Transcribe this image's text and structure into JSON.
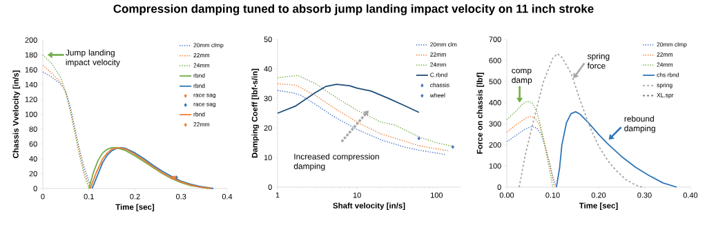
{
  "chart_data": [
    {
      "type": "line",
      "title": "Compression damping tuned to absorb jump landing impact velocity on 11 inch stroke",
      "xlabel": "Time [sec]",
      "ylabel": "Chassis Vvelocity [in/s]",
      "xlim": [
        0,
        0.4
      ],
      "ylim": [
        0,
        200
      ],
      "xticks": [
        0,
        0.1,
        0.2,
        0.3,
        0.4
      ],
      "yticks": [
        0,
        20,
        40,
        60,
        80,
        100,
        120,
        140,
        160,
        180,
        200
      ],
      "legend": "top right",
      "annotations": [
        {
          "text": "Jump landing impact velocity",
          "x": 0.01,
          "y": 180
        }
      ],
      "series": [
        {
          "name": "20mm clmp",
          "line_style": "dotted",
          "color": "#4472c4",
          "x": [
            0,
            0.02,
            0.04,
            0.05,
            0.06,
            0.07,
            0.08,
            0.09,
            0.1,
            0.105
          ],
          "values": [
            157,
            150,
            140,
            130,
            110,
            80,
            52,
            28,
            10,
            0
          ]
        },
        {
          "name": "22mm",
          "line_style": "dotted",
          "color": "#ed7d31",
          "x": [
            0,
            0.02,
            0.04,
            0.05,
            0.06,
            0.07,
            0.08,
            0.09,
            0.1,
            0.103
          ],
          "values": [
            166,
            155,
            142,
            128,
            105,
            77,
            48,
            22,
            5,
            0
          ]
        },
        {
          "name": "24mm",
          "line_style": "dotted",
          "color": "#70ad47",
          "x": [
            0,
            0.02,
            0.04,
            0.05,
            0.06,
            0.07,
            0.08,
            0.09,
            0.1
          ],
          "values": [
            180,
            168,
            148,
            130,
            103,
            73,
            43,
            18,
            0
          ]
        },
        {
          "name": "rbnd",
          "line_style": "solid",
          "color": "#70ad47",
          "x": [
            0.1,
            0.11,
            0.12,
            0.13,
            0.14,
            0.15,
            0.16,
            0.18,
            0.2,
            0.22,
            0.24,
            0.26,
            0.28,
            0.3,
            0.32,
            0.34,
            0.36
          ],
          "values": [
            0,
            22,
            38,
            48,
            53,
            55,
            55,
            51,
            44,
            36,
            28,
            20,
            13,
            8,
            4,
            2,
            0
          ]
        },
        {
          "name": "rbnd",
          "line_style": "solid",
          "color": "#2e75b6",
          "x": [
            0.107,
            0.12,
            0.13,
            0.14,
            0.15,
            0.16,
            0.17,
            0.18,
            0.2,
            0.22,
            0.24,
            0.26,
            0.28,
            0.3,
            0.32,
            0.34,
            0.37
          ],
          "values": [
            0,
            20,
            35,
            45,
            51,
            54,
            55,
            54,
            48,
            40,
            31,
            23,
            16,
            10,
            6,
            3,
            0
          ]
        },
        {
          "name": "race sag",
          "type": "scatter",
          "marker": "diamond",
          "color": "#ed7d31",
          "x": [
            0.283
          ],
          "values": [
            15
          ]
        },
        {
          "name": "race sag",
          "type": "scatter",
          "marker": "diamond",
          "color": "#2e75b6",
          "x": [
            0.29
          ],
          "values": [
            15
          ]
        },
        {
          "name": "rbnd",
          "line_style": "solid",
          "color": "#ed7d31",
          "x": [
            0.103,
            0.115,
            0.13,
            0.14,
            0.15,
            0.165,
            0.18,
            0.2,
            0.22,
            0.24,
            0.26,
            0.28,
            0.3,
            0.32,
            0.34,
            0.365
          ],
          "values": [
            0,
            20,
            40,
            48,
            53,
            55,
            53,
            46,
            38,
            29,
            21,
            14,
            9,
            5,
            2,
            0
          ]
        },
        {
          "name": "22mm",
          "type": "scatter",
          "marker": "diamond",
          "color": "#ed7d31",
          "x": [
            0.287
          ],
          "values": [
            15
          ]
        }
      ]
    },
    {
      "type": "line",
      "xlabel": "Shaft velocity [in/s]",
      "ylabel": "Damping Coeff [lbf-s/in]",
      "log": "x",
      "xlim": [
        1,
        200
      ],
      "ylim": [
        0,
        50
      ],
      "xticks": [
        1,
        10,
        100
      ],
      "yticks": [
        0,
        10,
        20,
        30,
        40,
        50
      ],
      "legend": "top right",
      "annotations": [
        "Increased compression damping"
      ],
      "series": [
        {
          "name": "20mm clm",
          "line_style": "dotted",
          "color": "#4472c4",
          "x": [
            1,
            1.5,
            2,
            3,
            5,
            10,
            20,
            40,
            60,
            130
          ],
          "values": [
            32.7,
            32,
            31,
            28,
            24,
            19.5,
            16,
            13.5,
            12.5,
            11
          ]
        },
        {
          "name": "22mm",
          "line_style": "dotted",
          "color": "#ed7d31",
          "x": [
            1,
            1.7,
            3,
            5,
            10,
            20,
            40,
            60,
            140
          ],
          "values": [
            35,
            34.5,
            31,
            27,
            22,
            18,
            15.5,
            14,
            12.3
          ]
        },
        {
          "name": "24mm",
          "line_style": "dotted",
          "color": "#70ad47",
          "x": [
            1,
            1.8,
            3,
            5,
            10,
            20,
            30,
            60,
            100,
            160
          ],
          "values": [
            37,
            37.8,
            35,
            31,
            26,
            22,
            21,
            17,
            15,
            13.8
          ]
        },
        {
          "name": "C.rbnd",
          "line_style": "solid",
          "color": "#1f4e79",
          "x": [
            1,
            1.7,
            3,
            4,
            5.5,
            8,
            10,
            15,
            25,
            40,
            60
          ],
          "values": [
            25,
            27.5,
            32,
            34,
            34.8,
            34.3,
            33.5,
            32.5,
            30,
            27.5,
            25.3
          ]
        },
        {
          "name": "chassis",
          "type": "scatter",
          "marker": "diamond",
          "color": "#4472c4",
          "x": [
            60
          ],
          "values": [
            16.5
          ]
        },
        {
          "name": "wheel",
          "type": "scatter",
          "marker": "diamond",
          "color": "#4472c4",
          "x": [
            160
          ],
          "values": [
            13.6
          ]
        }
      ]
    },
    {
      "type": "line",
      "xlabel": "Time [sec]",
      "ylabel": "Force on chassis [lbf]",
      "xlim": [
        0,
        0.4
      ],
      "ylim": [
        0,
        700
      ],
      "xticks": [
        {
          "value": 0,
          "label": "0.00"
        },
        {
          "value": 0.1,
          "label": "0.10"
        },
        {
          "value": 0.2,
          "label": "0.20"
        },
        {
          "value": 0.3,
          "label": "0.30"
        },
        {
          "value": 0.4,
          "label": "0.40"
        }
      ],
      "yticks": [
        0,
        100,
        200,
        300,
        400,
        500,
        600,
        700
      ],
      "legend": "top right",
      "annotations": [
        {
          "text": "comp damp",
          "x": 0.028,
          "y": 400
        },
        {
          "text": "spring force",
          "x": 0.145,
          "y": 515
        },
        {
          "text": "rebound damping",
          "x": 0.222,
          "y": 225
        }
      ],
      "series": [
        {
          "name": "20mm clmp",
          "line_style": "dotted",
          "color": "#4472c4",
          "x": [
            0,
            0.02,
            0.04,
            0.055,
            0.065,
            0.075,
            0.085,
            0.095,
            0.1,
            0.108
          ],
          "values": [
            215,
            245,
            275,
            288,
            280,
            250,
            180,
            100,
            50,
            0
          ]
        },
        {
          "name": "22mm",
          "line_style": "dotted",
          "color": "#ed7d31",
          "x": [
            0,
            0.02,
            0.04,
            0.05,
            0.06,
            0.07,
            0.08,
            0.09,
            0.1,
            0.104
          ],
          "values": [
            260,
            295,
            325,
            335,
            330,
            300,
            230,
            140,
            40,
            0
          ]
        },
        {
          "name": "24mm",
          "line_style": "dotted",
          "color": "#70ad47",
          "x": [
            0,
            0.02,
            0.035,
            0.045,
            0.055,
            0.065,
            0.075,
            0.085,
            0.095,
            0.1
          ],
          "values": [
            320,
            360,
            395,
            407,
            400,
            360,
            280,
            170,
            60,
            0
          ]
        },
        {
          "name": "chs rbnd",
          "line_style": "solid",
          "color": "#2e75b6",
          "x": [
            0.108,
            0.115,
            0.12,
            0.13,
            0.14,
            0.15,
            0.16,
            0.18,
            0.2,
            0.22,
            0.25,
            0.28,
            0.31,
            0.34,
            0.37
          ],
          "values": [
            0,
            90,
            200,
            305,
            348,
            357,
            345,
            300,
            250,
            205,
            145,
            95,
            55,
            20,
            0
          ]
        },
        {
          "name": "spring",
          "line_style": "dashed",
          "color": "#a6a6a6",
          "x": [
            0.027,
            0.04,
            0.06,
            0.08,
            0.1,
            0.11,
            0.12,
            0.14,
            0.16,
            0.18,
            0.2,
            0.22,
            0.24,
            0.26,
            0.28,
            0.295
          ],
          "values": [
            0,
            150,
            330,
            500,
            610,
            632,
            615,
            540,
            410,
            290,
            195,
            125,
            75,
            35,
            10,
            0
          ]
        },
        {
          "name": "XL.spr",
          "line_style": "dashed",
          "color": "#7f7f7f"
        }
      ]
    }
  ]
}
